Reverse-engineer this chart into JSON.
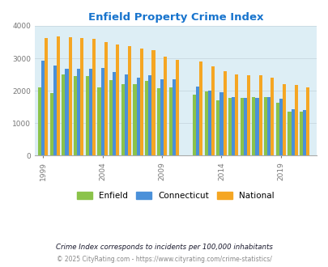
{
  "title": "Enfield Property Crime Index",
  "title_color": "#1874cd",
  "bg_color": "#ddeef5",
  "years": [
    1999,
    2000,
    2001,
    2002,
    2003,
    2004,
    2005,
    2006,
    2007,
    2008,
    2009,
    2010,
    2012,
    2013,
    2014,
    2015,
    2016,
    2017,
    2018,
    2019,
    2020,
    2021
  ],
  "enfield": [
    2100,
    1930,
    2500,
    2450,
    2450,
    2100,
    2320,
    2200,
    2210,
    2300,
    2080,
    2100,
    1870,
    1970,
    1710,
    1780,
    1790,
    1800,
    1810,
    1620,
    1360,
    1360
  ],
  "connecticut": [
    2920,
    2780,
    2680,
    2680,
    2680,
    2700,
    2580,
    2510,
    2400,
    2490,
    2360,
    2360,
    2120,
    2010,
    1960,
    1800,
    1780,
    1790,
    1800,
    1760,
    1420,
    1410
  ],
  "national": [
    3620,
    3670,
    3660,
    3620,
    3610,
    3510,
    3420,
    3370,
    3300,
    3250,
    3050,
    2960,
    2890,
    2760,
    2610,
    2510,
    2480,
    2480,
    2400,
    2200,
    2180,
    2100
  ],
  "enfield_color": "#8bc34a",
  "connecticut_color": "#4a90d9",
  "national_color": "#f5a623",
  "ylim": [
    0,
    4000
  ],
  "yticks": [
    0,
    1000,
    2000,
    3000,
    4000
  ],
  "xtick_years": [
    1999,
    2004,
    2009,
    2014,
    2019
  ],
  "footnote1": "Crime Index corresponds to incidents per 100,000 inhabitants",
  "footnote2": "© 2025 CityRating.com - https://www.cityrating.com/crime-statistics/",
  "footnote1_color": "#1a1a2e",
  "footnote2_color": "#888888"
}
